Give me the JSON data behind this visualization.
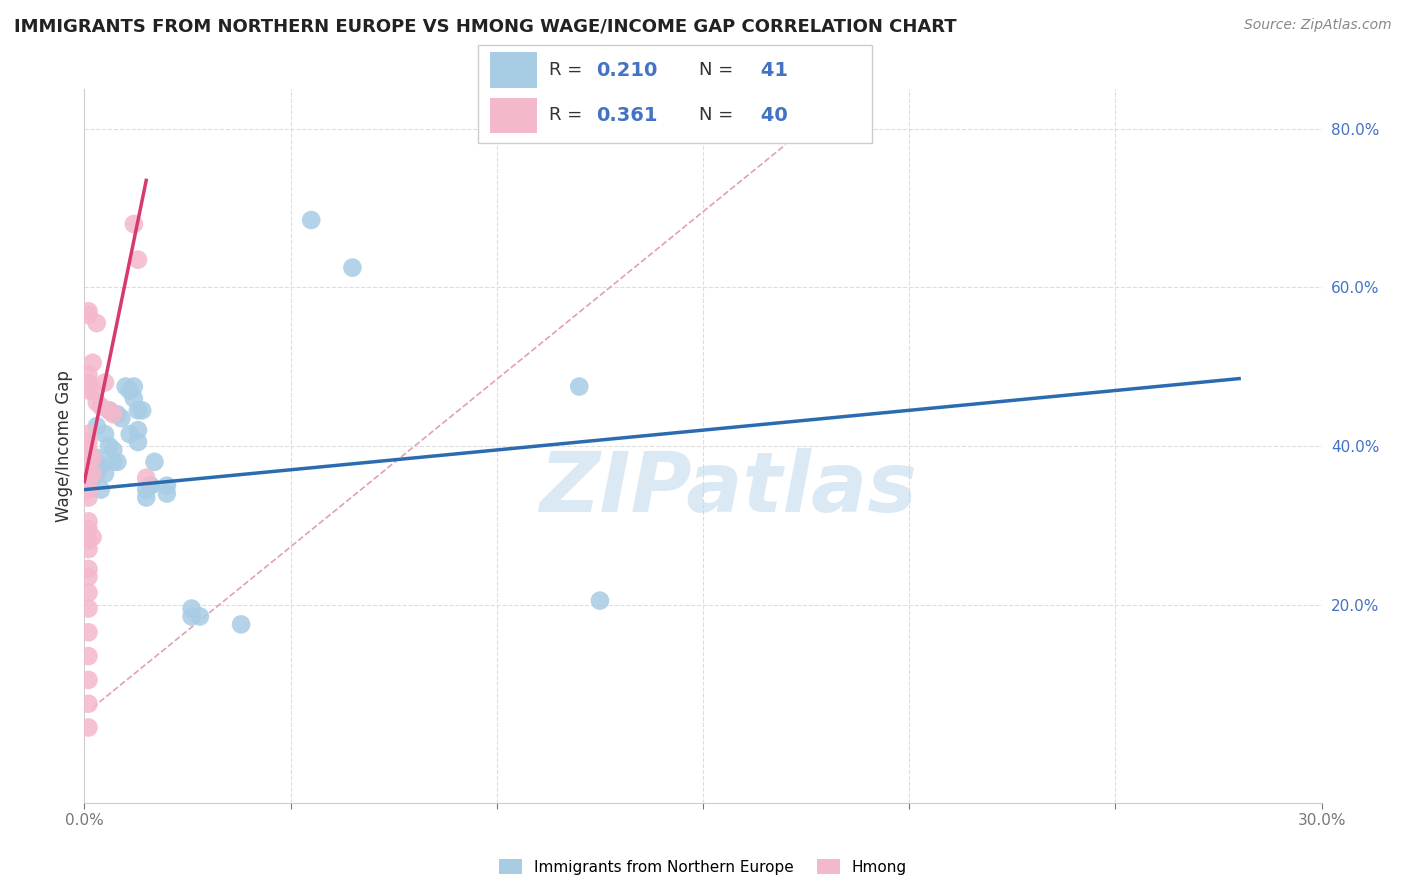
{
  "title": "IMMIGRANTS FROM NORTHERN EUROPE VS HMONG WAGE/INCOME GAP CORRELATION CHART",
  "source": "Source: ZipAtlas.com",
  "ylabel": "Wage/Income Gap",
  "xlim": [
    0.0,
    0.3
  ],
  "ylim": [
    -0.05,
    0.85
  ],
  "x_ticks": [
    0.0,
    0.05,
    0.1,
    0.15,
    0.2,
    0.25,
    0.3
  ],
  "x_tick_labels": [
    "0.0%",
    "",
    "",
    "",
    "",
    "",
    "30.0%"
  ],
  "y_ticks_right": [
    0.2,
    0.4,
    0.6,
    0.8
  ],
  "y_tick_right_labels": [
    "20.0%",
    "40.0%",
    "60.0%",
    "80.0%"
  ],
  "blue_color": "#a8cce4",
  "pink_color": "#f4b8cb",
  "blue_line_color": "#2b6cb0",
  "pink_line_color": "#d63a6e",
  "diag_line_color": "#cccccc",
  "watermark": "ZIPatlas",
  "blue_scatter": [
    [
      0.001,
      0.385
    ],
    [
      0.002,
      0.36
    ],
    [
      0.002,
      0.385
    ],
    [
      0.003,
      0.365
    ],
    [
      0.003,
      0.385
    ],
    [
      0.003,
      0.425
    ],
    [
      0.004,
      0.345
    ],
    [
      0.004,
      0.375
    ],
    [
      0.005,
      0.365
    ],
    [
      0.005,
      0.415
    ],
    [
      0.006,
      0.4
    ],
    [
      0.006,
      0.445
    ],
    [
      0.007,
      0.38
    ],
    [
      0.007,
      0.395
    ],
    [
      0.008,
      0.38
    ],
    [
      0.008,
      0.44
    ],
    [
      0.009,
      0.435
    ],
    [
      0.01,
      0.475
    ],
    [
      0.011,
      0.415
    ],
    [
      0.011,
      0.47
    ],
    [
      0.012,
      0.46
    ],
    [
      0.012,
      0.475
    ],
    [
      0.013,
      0.445
    ],
    [
      0.013,
      0.405
    ],
    [
      0.013,
      0.42
    ],
    [
      0.014,
      0.445
    ],
    [
      0.015,
      0.345
    ],
    [
      0.015,
      0.335
    ],
    [
      0.016,
      0.35
    ],
    [
      0.016,
      0.35
    ],
    [
      0.017,
      0.38
    ],
    [
      0.02,
      0.35
    ],
    [
      0.02,
      0.34
    ],
    [
      0.026,
      0.185
    ],
    [
      0.026,
      0.195
    ],
    [
      0.028,
      0.185
    ],
    [
      0.038,
      0.175
    ],
    [
      0.055,
      0.685
    ],
    [
      0.065,
      0.625
    ],
    [
      0.12,
      0.475
    ],
    [
      0.125,
      0.205
    ]
  ],
  "pink_scatter": [
    [
      0.001,
      0.565
    ],
    [
      0.001,
      0.57
    ],
    [
      0.001,
      0.47
    ],
    [
      0.001,
      0.48
    ],
    [
      0.001,
      0.49
    ],
    [
      0.001,
      0.395
    ],
    [
      0.001,
      0.405
    ],
    [
      0.001,
      0.415
    ],
    [
      0.001,
      0.375
    ],
    [
      0.001,
      0.38
    ],
    [
      0.001,
      0.355
    ],
    [
      0.001,
      0.345
    ],
    [
      0.001,
      0.335
    ],
    [
      0.001,
      0.305
    ],
    [
      0.001,
      0.295
    ],
    [
      0.001,
      0.28
    ],
    [
      0.001,
      0.27
    ],
    [
      0.001,
      0.245
    ],
    [
      0.001,
      0.235
    ],
    [
      0.001,
      0.215
    ],
    [
      0.001,
      0.195
    ],
    [
      0.001,
      0.165
    ],
    [
      0.001,
      0.135
    ],
    [
      0.001,
      0.105
    ],
    [
      0.001,
      0.075
    ],
    [
      0.001,
      0.045
    ],
    [
      0.002,
      0.47
    ],
    [
      0.002,
      0.505
    ],
    [
      0.002,
      0.365
    ],
    [
      0.002,
      0.385
    ],
    [
      0.002,
      0.285
    ],
    [
      0.003,
      0.555
    ],
    [
      0.003,
      0.455
    ],
    [
      0.004,
      0.45
    ],
    [
      0.005,
      0.48
    ],
    [
      0.006,
      0.445
    ],
    [
      0.007,
      0.44
    ],
    [
      0.012,
      0.68
    ],
    [
      0.013,
      0.635
    ],
    [
      0.015,
      0.36
    ]
  ],
  "blue_trend_x": [
    0.0,
    0.28
  ],
  "blue_trend_y": [
    0.345,
    0.485
  ],
  "pink_trend_x": [
    0.0,
    0.015
  ],
  "pink_trend_y": [
    0.355,
    0.735
  ],
  "diag_trend_x": [
    0.002,
    0.17
  ],
  "diag_trend_y": [
    0.07,
    0.78
  ]
}
